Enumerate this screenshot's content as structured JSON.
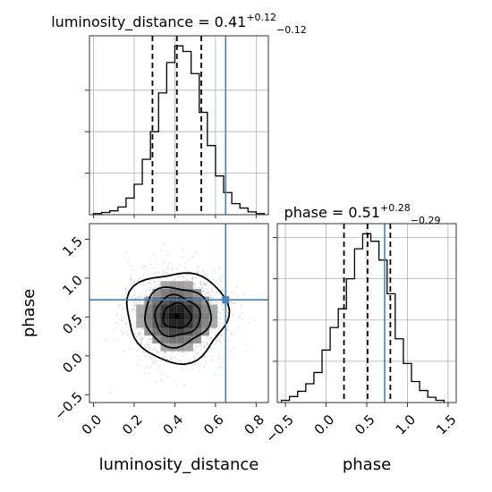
{
  "colors": {
    "truth": "#4682b4",
    "hist": "#000000",
    "grid": "#b0b0b0"
  },
  "chart_data": {
    "type": "corner",
    "parameters": [
      "luminosity_distance",
      "phase"
    ],
    "truths": {
      "luminosity_distance": 0.65,
      "phase": 0.72
    },
    "grid": true,
    "diagonal_titles": [
      {
        "param": "luminosity_distance",
        "text": "luminosity_distance = 0.41",
        "sup": "+0.12",
        "sub": "−0.12"
      },
      {
        "param": "phase",
        "text": "phase = 0.51",
        "sup": "+0.28",
        "sub": "−0.29"
      }
    ],
    "xlabels": [
      "luminosity_distance",
      "phase"
    ],
    "ylabels": [
      "phase"
    ],
    "luminosity_distance_marginal": {
      "xlim": [
        -0.02,
        0.86
      ],
      "quantiles": [
        0.29,
        0.41,
        0.53
      ],
      "edges": [
        0.0,
        0.04,
        0.08,
        0.12,
        0.16,
        0.2,
        0.24,
        0.28,
        0.32,
        0.36,
        0.4,
        0.44,
        0.48,
        0.52,
        0.56,
        0.6,
        0.64,
        0.68,
        0.72,
        0.76,
        0.8,
        0.84
      ],
      "counts": [
        2,
        4,
        7,
        14,
        30,
        55,
        100,
        150,
        220,
        275,
        305,
        295,
        255,
        185,
        125,
        70,
        40,
        20,
        12,
        5,
        2
      ]
    },
    "phase_marginal": {
      "xlim": [
        -0.6,
        1.6
      ],
      "xticks": [
        -0.5,
        0.0,
        0.5,
        1.0,
        1.5
      ],
      "xticklabels": [
        "−0.5",
        "0.0",
        "0.5",
        "1.0",
        "1.5"
      ],
      "quantiles": [
        0.22,
        0.51,
        0.79
      ],
      "edges": [
        -0.55,
        -0.45,
        -0.35,
        -0.25,
        -0.15,
        -0.05,
        0.05,
        0.15,
        0.25,
        0.35,
        0.45,
        0.55,
        0.65,
        0.75,
        0.85,
        0.95,
        1.05,
        1.15,
        1.25,
        1.35,
        1.45
      ],
      "counts": [
        3,
        8,
        15,
        25,
        40,
        70,
        100,
        125,
        165,
        205,
        225,
        215,
        190,
        145,
        85,
        52,
        28,
        16,
        7,
        3
      ]
    },
    "joint": {
      "xlim": [
        -0.02,
        0.86
      ],
      "ylim": [
        -0.6,
        1.7
      ],
      "xticks": [
        0.0,
        0.2,
        0.4,
        0.6,
        0.8
      ],
      "xticklabels": [
        "0.0",
        "0.2",
        "0.4",
        "0.6",
        "0.8"
      ],
      "yticks": [
        -0.5,
        0.0,
        0.5,
        1.0,
        1.5
      ],
      "yticklabels": [
        "−0.5",
        "0.0",
        "0.5",
        "1.0",
        "1.5"
      ],
      "center": [
        0.41,
        0.51
      ],
      "sigma": [
        0.12,
        0.28
      ],
      "contour_levels": [
        0.12,
        0.4,
        0.65,
        0.85
      ]
    }
  }
}
